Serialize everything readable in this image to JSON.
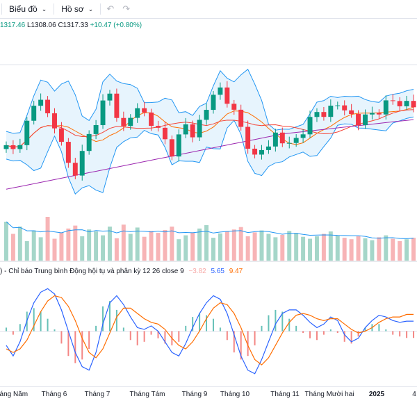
{
  "toolbar": {
    "chart_menu": "Biểu đồ",
    "profile_menu": "Hồ sơ"
  },
  "ohlc": {
    "open_partial": "1317.46",
    "low": "L1308.06",
    "close": "C1317.33",
    "change": "+10.47 (+0.80%)"
  },
  "macd_legend": {
    "prefix": ")",
    "title": "- Chỉ báo Trung bình Động hội tụ và phân kỳ",
    "params": "12 26 close 9",
    "histogram": "−3.82",
    "macd": "5.65",
    "signal": "9.47"
  },
  "colors": {
    "up": "#089981",
    "down": "#f23645",
    "band_fill": "#e3f2fd",
    "band_line": "#2196f3",
    "ma_short": "#ff6d00",
    "ma_mid": "#f44336",
    "ma_long": "#9c27b0",
    "macd_line": "#2962ff",
    "signal_line": "#ff6d00"
  },
  "chart_data": [
    {
      "type": "candlestick",
      "title": "",
      "x_tick_labels": [
        "Tháng Năm",
        "Tháng 6",
        "Tháng 7",
        "Tháng Tám",
        "Tháng 9",
        "Tháng 10",
        "Tháng 11",
        "Tháng Mười hai",
        "2025",
        "4"
      ],
      "bold_tick_labels": [
        "2025"
      ],
      "indicators": [
        "Bollinger Bands",
        "Moving Average (short)",
        "Moving Average (mid)",
        "Moving Average (long)"
      ],
      "close_path": [
        1255,
        1252,
        1262,
        1274,
        1286,
        1297,
        1281,
        1270,
        1260,
        1242,
        1236,
        1250,
        1264,
        1278,
        1290,
        1296,
        1282,
        1271,
        1279,
        1286,
        1282,
        1276,
        1268,
        1260,
        1253,
        1263,
        1272,
        1266,
        1276,
        1286,
        1296,
        1302,
        1294,
        1282,
        1270,
        1259,
        1247,
        1252,
        1258,
        1266,
        1260,
        1257,
        1262,
        1270,
        1276,
        1282,
        1284,
        1286,
        1288,
        1286,
        1281,
        1275,
        1279,
        1282,
        1286,
        1289,
        1291,
        1292,
        1290,
        1287
      ],
      "last_candle": {
        "low": 1308.06,
        "close": 1317.33,
        "change": 10.47,
        "change_pct": 0.8
      }
    },
    {
      "type": "bar",
      "title": "",
      "series": [
        {
          "values": [
            80,
            55,
            70,
            40,
            62,
            48,
            90,
            45,
            58,
            66,
            72,
            50,
            64,
            60,
            52,
            70,
            46,
            74,
            55,
            68,
            49,
            61,
            57,
            63,
            70,
            44,
            52,
            58,
            66,
            73,
            47,
            56,
            60,
            64,
            69,
            50,
            58,
            62,
            55,
            48,
            53,
            61,
            57,
            49,
            45,
            50,
            55,
            60,
            52,
            47,
            44,
            50,
            46,
            42,
            48,
            52,
            45,
            40,
            44,
            47
          ]
        }
      ]
    },
    {
      "type": "line",
      "title": "Chỉ báo Trung bình Động hội tụ và phân kỳ",
      "params": "12 26 close 9",
      "series": [
        {
          "name": "MACD",
          "values": [
            -8,
            -14,
            -6,
            6,
            16,
            22,
            24,
            21,
            12,
            0,
            -12,
            -20,
            -22,
            -12,
            4,
            16,
            20,
            15,
            8,
            2,
            1,
            3,
            0,
            -6,
            -12,
            -14,
            -7,
            2,
            10,
            16,
            20,
            18,
            10,
            -2,
            -14,
            -22,
            -24,
            -16,
            -6,
            4,
            10,
            12,
            12,
            9,
            5,
            2,
            4,
            8,
            6,
            -2,
            -6,
            -4,
            2,
            6,
            9,
            8,
            6,
            5,
            5.65,
            5.65
          ]
        },
        {
          "name": "Signal",
          "values": [
            -10,
            -12,
            -10,
            -5,
            3,
            11,
            17,
            20,
            19,
            14,
            6,
            -4,
            -12,
            -15,
            -10,
            -1,
            8,
            13,
            13,
            10,
            7,
            5,
            4,
            1,
            -4,
            -8,
            -10,
            -6,
            0,
            7,
            13,
            16,
            15,
            10,
            2,
            -8,
            -16,
            -19,
            -15,
            -8,
            -1,
            5,
            9,
            10,
            9,
            7,
            6,
            7,
            7,
            4,
            1,
            -1,
            0,
            2,
            5,
            7,
            8,
            8,
            9.47,
            9.47
          ]
        },
        {
          "name": "Histogram",
          "values": [
            2,
            -2,
            4,
            11,
            13,
            11,
            7,
            1,
            -7,
            -14,
            -18,
            -16,
            -10,
            3,
            14,
            17,
            12,
            2,
            -5,
            -8,
            -6,
            -2,
            -4,
            -7,
            -8,
            -6,
            3,
            8,
            10,
            9,
            7,
            2,
            -5,
            -12,
            -16,
            -14,
            -8,
            3,
            9,
            12,
            11,
            7,
            3,
            -1,
            -4,
            -5,
            -2,
            1,
            -1,
            -6,
            -7,
            -3,
            2,
            4,
            4,
            1,
            -2,
            -3,
            -3.82,
            -3.82
          ]
        }
      ],
      "zero_line": true
    }
  ]
}
